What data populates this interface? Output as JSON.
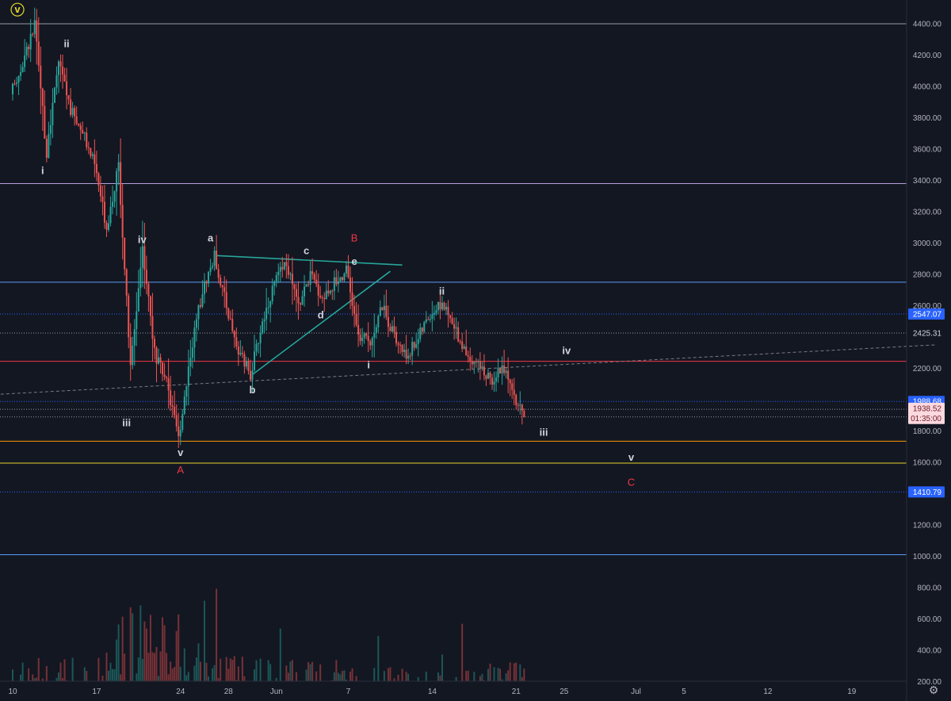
{
  "chart_data": {
    "type": "candlestick",
    "title": "",
    "xlabel": "",
    "ylabel": "",
    "ylim": [
      100,
      4500
    ],
    "grid": false,
    "x_ticks": [
      {
        "label": "10",
        "day": 0
      },
      {
        "label": "17",
        "day": 7
      },
      {
        "label": "24",
        "day": 14
      },
      {
        "label": "28",
        "day": 18
      },
      {
        "label": "Jun",
        "day": 22
      },
      {
        "label": "7",
        "day": 28
      },
      {
        "label": "14",
        "day": 35
      },
      {
        "label": "21",
        "day": 42
      },
      {
        "label": "25",
        "day": 46
      },
      {
        "label": "Jul",
        "day": 52
      },
      {
        "label": "5",
        "day": 56
      },
      {
        "label": "12",
        "day": 63
      },
      {
        "label": "19",
        "day": 70
      }
    ],
    "y_ticks": [
      "4400.00",
      "4200.00",
      "4000.00",
      "3800.00",
      "3600.00",
      "3400.00",
      "3200.00",
      "3000.00",
      "2800.00",
      "2600.00",
      "2200.00",
      "1800.00",
      "1600.00",
      "1200.00",
      "1000.00",
      "800.00",
      "600.00",
      "400.00",
      "200.00"
    ],
    "price_path": [
      [
        0,
        3950
      ],
      [
        1,
        4150
      ],
      [
        2,
        4390
      ],
      [
        3,
        3560
      ],
      [
        4,
        4170
      ],
      [
        5,
        3850
      ],
      [
        6,
        3700
      ],
      [
        7,
        3500
      ],
      [
        8,
        3100
      ],
      [
        9,
        3500
      ],
      [
        10,
        2200
      ],
      [
        11,
        2980
      ],
      [
        12,
        2300
      ],
      [
        13,
        2100
      ],
      [
        14,
        1750
      ],
      [
        15,
        2300
      ],
      [
        16,
        2700
      ],
      [
        17,
        2920
      ],
      [
        18,
        2600
      ],
      [
        19,
        2300
      ],
      [
        20,
        2160
      ],
      [
        21,
        2500
      ],
      [
        22,
        2750
      ],
      [
        23,
        2870
      ],
      [
        24,
        2600
      ],
      [
        25,
        2800
      ],
      [
        26,
        2650
      ],
      [
        27,
        2750
      ],
      [
        28,
        2820
      ],
      [
        29,
        2400
      ],
      [
        30,
        2380
      ],
      [
        31,
        2600
      ],
      [
        32,
        2400
      ],
      [
        33,
        2280
      ],
      [
        34,
        2400
      ],
      [
        35,
        2550
      ],
      [
        36,
        2620
      ],
      [
        37,
        2450
      ],
      [
        38,
        2300
      ],
      [
        39,
        2230
      ],
      [
        40,
        2120
      ],
      [
        41,
        2220
      ],
      [
        42,
        2000
      ],
      [
        42.7,
        1905
      ]
    ],
    "volume_path": [
      [
        0,
        260
      ],
      [
        3,
        330
      ],
      [
        6,
        300
      ],
      [
        8,
        420
      ],
      [
        9,
        520
      ],
      [
        10,
        700
      ],
      [
        11,
        560
      ],
      [
        12,
        480
      ],
      [
        13,
        600
      ],
      [
        14,
        540
      ],
      [
        15,
        420
      ],
      [
        17,
        380
      ],
      [
        19,
        340
      ],
      [
        21,
        320
      ],
      [
        23,
        300
      ],
      [
        25,
        290
      ],
      [
        27,
        310
      ],
      [
        29,
        270
      ],
      [
        31,
        260
      ],
      [
        33,
        250
      ],
      [
        35,
        240
      ],
      [
        37,
        245
      ],
      [
        39,
        260
      ],
      [
        41,
        300
      ],
      [
        42,
        360
      ],
      [
        42.7,
        340
      ]
    ],
    "horizontal_levels": [
      {
        "price": 4400,
        "color": "#9598a1",
        "style": "solid"
      },
      {
        "price": 3380,
        "color": "#b39ddb",
        "style": "solid"
      },
      {
        "price": 2750,
        "color": "#5b9cf6",
        "style": "solid"
      },
      {
        "price": 2547.07,
        "color": "#2962ff",
        "style": "dotted"
      },
      {
        "price": 2425.31,
        "color": "#9598a1",
        "style": "dotted"
      },
      {
        "price": 2245,
        "color": "#f23645",
        "style": "solid"
      },
      {
        "price": 1988.68,
        "color": "#2962ff",
        "style": "dotted"
      },
      {
        "price": 1938.52,
        "color": "#9598a1",
        "style": "dotted"
      },
      {
        "price": 1890,
        "color": "#9598a1",
        "style": "dotted"
      },
      {
        "price": 1735,
        "color": "#ff9800",
        "style": "solid"
      },
      {
        "price": 1595,
        "color": "#e6d52b",
        "style": "solid"
      },
      {
        "price": 1410.79,
        "color": "#2962ff",
        "style": "dotted"
      },
      {
        "price": 1010,
        "color": "#5b9cf6",
        "style": "solid"
      }
    ],
    "trendlines": [
      {
        "from": [
          -1,
          2035
        ],
        "to": [
          77,
          2350
        ],
        "color": "#787b86",
        "style": "dashed"
      },
      {
        "from": [
          17,
          2920
        ],
        "to": [
          32.5,
          2860
        ],
        "color": "#26a69a",
        "style": "solid"
      },
      {
        "from": [
          20,
          2160
        ],
        "to": [
          31.5,
          2820
        ],
        "color": "#26a69a",
        "style": "solid"
      }
    ],
    "price_labels": [
      {
        "text": "2547.07",
        "price": 2547.07,
        "bg": "#2962ff",
        "fg": "#ffffff"
      },
      {
        "text": "2425.31",
        "price": 2425.31,
        "bg": "#131722",
        "fg": "#d1d4dc"
      },
      {
        "text": "1988.68",
        "price": 1988.68,
        "bg": "#2962ff",
        "fg": "#ffffff"
      },
      {
        "text": "1938.52",
        "price": 1945,
        "bg": "#fcd9df",
        "fg": "#6d1b28"
      },
      {
        "text": "01:35:00",
        "price": 1880,
        "bg": "#fcd9df",
        "fg": "#6d1b28"
      },
      {
        "text": "1410.79",
        "price": 1410.79,
        "bg": "#2962ff",
        "fg": "#ffffff"
      }
    ],
    "annotations": [
      {
        "text": "v",
        "day": 0.4,
        "price": 4470,
        "color": "#e6d52b",
        "circled": true
      },
      {
        "text": "ii",
        "day": 4.5,
        "price": 4250,
        "color": "#d1d4dc"
      },
      {
        "text": "i",
        "day": 2.5,
        "price": 3440,
        "color": "#d1d4dc"
      },
      {
        "text": "iv",
        "day": 10.8,
        "price": 3000,
        "color": "#d1d4dc"
      },
      {
        "text": "iii",
        "day": 9.5,
        "price": 1830,
        "color": "#d1d4dc"
      },
      {
        "text": "v",
        "day": 14,
        "price": 1640,
        "color": "#d1d4dc"
      },
      {
        "text": "A",
        "day": 14,
        "price": 1530,
        "color": "#f23645"
      },
      {
        "text": "a",
        "day": 16.5,
        "price": 3010,
        "color": "#d1d4dc"
      },
      {
        "text": "b",
        "day": 20,
        "price": 2040,
        "color": "#d1d4dc"
      },
      {
        "text": "c",
        "day": 24.5,
        "price": 2930,
        "color": "#d1d4dc"
      },
      {
        "text": "d",
        "day": 25.7,
        "price": 2520,
        "color": "#d1d4dc"
      },
      {
        "text": "e",
        "day": 28.5,
        "price": 2860,
        "color": "#d1d4dc"
      },
      {
        "text": "B",
        "day": 28.5,
        "price": 3010,
        "color": "#f23645"
      },
      {
        "text": "i",
        "day": 29.7,
        "price": 2200,
        "color": "#d1d4dc"
      },
      {
        "text": "ii",
        "day": 35.8,
        "price": 2670,
        "color": "#d1d4dc"
      },
      {
        "text": "iv",
        "day": 46.2,
        "price": 2290,
        "color": "#d1d4dc"
      },
      {
        "text": "iii",
        "day": 44.3,
        "price": 1770,
        "color": "#d1d4dc"
      },
      {
        "text": "v",
        "day": 51.6,
        "price": 1610,
        "color": "#d1d4dc"
      },
      {
        "text": "C",
        "day": 51.6,
        "price": 1450,
        "color": "#f23645"
      }
    ],
    "colors": {
      "background": "#131722",
      "up": "#26a69a",
      "down": "#ef5350",
      "text": "#b2b5be"
    }
  }
}
